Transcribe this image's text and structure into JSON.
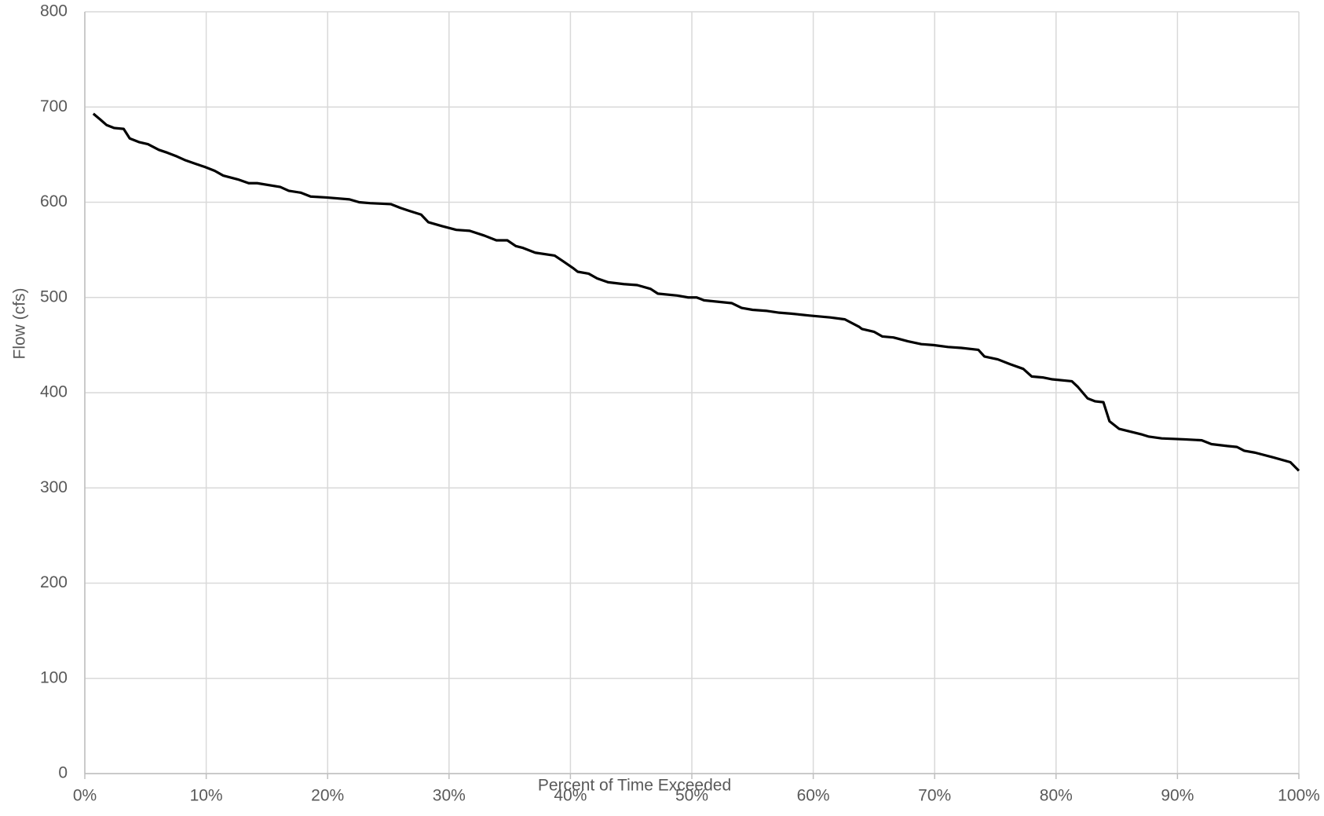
{
  "chart_data": {
    "type": "line",
    "ylabel": "Flow (cfs)",
    "xlabel": "Percent of Time Exceeded",
    "color": "#000000",
    "grid": true,
    "x": [
      0.7,
      1.26,
      1.8,
      2.4,
      3.2,
      3.7,
      4.5,
      5.2,
      6.1,
      6.8,
      7.6,
      8.3,
      9.2,
      9.9,
      10.7,
      11.4,
      12.6,
      13.5,
      14.2,
      16.1,
      16.8,
      17.8,
      18.6,
      19.9,
      21.8,
      22.6,
      23.5,
      25.2,
      26.0,
      26.7,
      27.7,
      28.3,
      29.4,
      30.6,
      31.7,
      32.9,
      33.9,
      34.8,
      35.5,
      36.1,
      37.1,
      38.7,
      39.4,
      40.2,
      40.6,
      41.5,
      42.2,
      43.1,
      44.4,
      45.5,
      46.6,
      47.2,
      48.8,
      49.7,
      50.4,
      51.0,
      53.3,
      54.1,
      55.0,
      56.1,
      57.2,
      58.2,
      59.7,
      61.4,
      62.6,
      63.8,
      64.0,
      65.0,
      65.7,
      66.6,
      67.8,
      68.9,
      69.9,
      71.1,
      72.2,
      73.6,
      74.1,
      75.2,
      76.2,
      77.3,
      78.0,
      78.9,
      79.7,
      81.3,
      81.8,
      82.6,
      83.2,
      83.9,
      84.4,
      85.2,
      87.1,
      87.6,
      88.7,
      90.6,
      92.0,
      92.8,
      94.1,
      94.9,
      95.5,
      96.4,
      97.9,
      99.3,
      100
    ],
    "values": [
      693,
      687,
      681,
      678,
      677,
      667,
      663,
      661,
      655,
      652,
      648,
      644,
      640,
      637,
      633,
      628,
      624,
      620,
      620,
      616,
      612,
      610,
      606,
      605,
      603,
      600,
      599,
      598,
      594,
      591,
      587,
      579,
      575,
      571,
      570,
      565,
      560,
      560,
      554,
      552,
      547,
      544,
      538,
      531,
      527,
      525,
      520,
      516,
      514,
      513,
      509,
      504,
      502,
      500,
      500,
      497,
      494,
      489,
      487,
      486,
      484,
      483,
      481,
      479,
      477,
      469,
      467,
      464,
      459,
      458,
      454,
      451,
      450,
      448,
      447,
      445,
      438,
      435,
      430,
      425,
      417,
      416,
      414,
      412,
      406,
      394,
      391,
      390,
      370,
      362,
      356,
      354,
      352,
      351,
      350,
      346,
      344,
      343,
      339,
      337,
      332,
      327,
      318
    ],
    "xlim": [
      0,
      100
    ],
    "ylim": [
      0,
      800
    ],
    "xticks": [
      {
        "value": 0,
        "label": "0%"
      },
      {
        "value": 10,
        "label": "10%"
      },
      {
        "value": 20,
        "label": "20%"
      },
      {
        "value": 30,
        "label": "30%"
      },
      {
        "value": 40,
        "label": "40%"
      },
      {
        "value": 50,
        "label": "50%"
      },
      {
        "value": 60,
        "label": "60%"
      },
      {
        "value": 70,
        "label": "70%"
      },
      {
        "value": 80,
        "label": "80%"
      },
      {
        "value": 90,
        "label": "90%"
      },
      {
        "value": 100,
        "label": "100%"
      }
    ],
    "yticks": [
      0,
      100,
      200,
      300,
      400,
      500,
      600,
      700,
      800
    ]
  }
}
